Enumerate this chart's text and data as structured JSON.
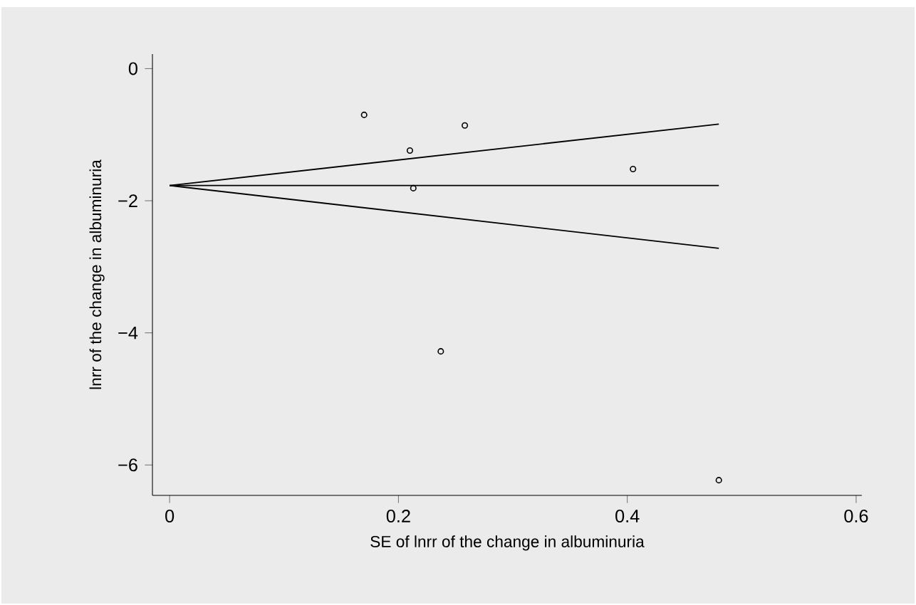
{
  "chart_data": {
    "type": "scatter",
    "xlabel": "SE of lnrr of the change in albuminuria",
    "ylabel": "lnrr of  the change in albuminuria",
    "xlim": [
      -0.015,
      0.605
    ],
    "ylim": [
      -6.46,
      0.22
    ],
    "xticks": [
      0,
      0.2,
      0.4,
      0.6
    ],
    "yticks": [
      {
        "value": 0,
        "label": "0"
      },
      {
        "value": -2,
        "label": "−2"
      },
      {
        "value": -4,
        "label": "−4"
      },
      {
        "value": -6,
        "label": "−6"
      }
    ],
    "grid": false,
    "series": [
      {
        "marker": "circle",
        "color": "#000000",
        "x": [
          0.17,
          0.21,
          0.258,
          0.213,
          0.405,
          0.237,
          0.48
        ],
        "values": [
          -0.7,
          -1.24,
          -0.86,
          -1.81,
          -1.52,
          -4.28,
          -6.23
        ]
      },
      {
        "type": "line",
        "marker": "none",
        "color": "#000000",
        "x": [
          0,
          0.48
        ],
        "values": [
          -1.77,
          -1.77
        ]
      },
      {
        "type": "line",
        "marker": "none",
        "color": "#000000",
        "x": [
          0,
          0.48
        ],
        "values": [
          -1.77,
          -0.84
        ]
      },
      {
        "type": "line",
        "marker": "none",
        "color": "#000000",
        "x": [
          0,
          0.48
        ],
        "values": [
          -1.77,
          -2.72
        ]
      }
    ]
  }
}
